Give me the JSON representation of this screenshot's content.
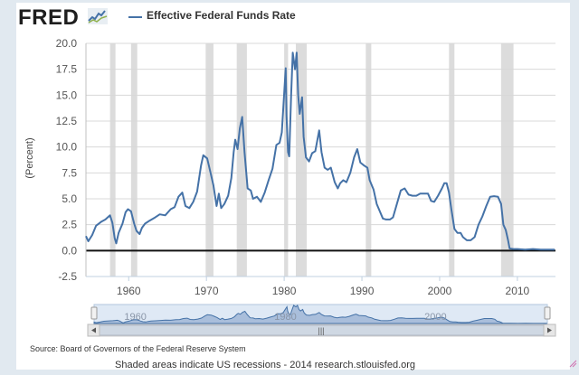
{
  "brand": {
    "logo_text": "FRED"
  },
  "chart_data": {
    "type": "line",
    "title": "",
    "ylabel": "(Percent)",
    "xlabel": "",
    "xlim": [
      1954.5,
      2014.9
    ],
    "ylim": [
      -2.5,
      20
    ],
    "y_ticks": [
      "20.0",
      "17.5",
      "15.0",
      "12.5",
      "10.0",
      "7.5",
      "5.0",
      "2.5",
      "0.0",
      "-2.5"
    ],
    "x_ticks": [
      "1960",
      "1970",
      "1980",
      "1990",
      "2000",
      "2010"
    ],
    "grid": "horizontal",
    "legend_position": "top",
    "line_color": "#4572a7",
    "recession_color": "#dcdcdc",
    "series": [
      {
        "name": "Effective Federal Funds Rate",
        "x": [
          1954.5,
          1954.8,
          1955.3,
          1955.8,
          1956.5,
          1957.0,
          1957.6,
          1957.9,
          1958.2,
          1958.4,
          1958.7,
          1959.2,
          1959.6,
          1959.9,
          1960.3,
          1960.7,
          1961.0,
          1961.4,
          1961.7,
          1962.1,
          1962.7,
          1963.4,
          1964.0,
          1964.7,
          1965.4,
          1965.9,
          1966.4,
          1966.9,
          1967.3,
          1967.8,
          1968.3,
          1968.8,
          1969.3,
          1969.6,
          1970.1,
          1970.5,
          1970.9,
          1971.3,
          1971.6,
          1971.9,
          1972.3,
          1972.8,
          1973.2,
          1973.5,
          1973.7,
          1974.0,
          1974.3,
          1974.6,
          1974.9,
          1975.3,
          1975.7,
          1976.0,
          1976.5,
          1977.0,
          1977.5,
          1978.0,
          1978.5,
          1979.0,
          1979.4,
          1979.7,
          1979.9,
          1980.2,
          1980.3,
          1980.5,
          1980.65,
          1980.9,
          1981.1,
          1981.4,
          1981.6,
          1981.8,
          1982.0,
          1982.3,
          1982.5,
          1982.8,
          1983.2,
          1983.6,
          1984.0,
          1984.5,
          1984.8,
          1985.2,
          1985.6,
          1986.0,
          1986.5,
          1986.9,
          1987.2,
          1987.6,
          1988.0,
          1988.5,
          1989.0,
          1989.4,
          1989.8,
          1990.3,
          1990.7,
          1991.0,
          1991.5,
          1991.9,
          1992.3,
          1992.7,
          1993.1,
          1993.6,
          1994.0,
          1994.5,
          1995.0,
          1995.5,
          1996.0,
          1996.5,
          1997.0,
          1997.5,
          1998.0,
          1998.5,
          1998.9,
          1999.3,
          1999.8,
          2000.3,
          2000.6,
          2000.9,
          2001.2,
          2001.5,
          2001.9,
          2002.3,
          2002.7,
          2003.0,
          2003.5,
          2004.0,
          2004.5,
          2005.0,
          2005.5,
          2006.0,
          2006.5,
          2007.0,
          2007.5,
          2007.9,
          2008.2,
          2008.5,
          2008.8,
          2009.0,
          2009.5,
          2010.0,
          2011.0,
          2012.0,
          2013.0,
          2014.0,
          2014.8
        ],
        "values": [
          1.4,
          0.9,
          1.5,
          2.4,
          2.8,
          3.0,
          3.4,
          2.7,
          1.2,
          0.7,
          1.7,
          2.6,
          3.7,
          4.0,
          3.8,
          2.6,
          1.9,
          1.6,
          2.2,
          2.6,
          2.9,
          3.2,
          3.5,
          3.4,
          4.0,
          4.2,
          5.2,
          5.6,
          4.3,
          4.1,
          4.7,
          5.7,
          8.2,
          9.2,
          8.9,
          7.6,
          6.3,
          4.3,
          5.5,
          4.1,
          4.5,
          5.3,
          7.0,
          9.5,
          10.7,
          9.8,
          11.8,
          12.9,
          9.5,
          6.0,
          5.8,
          5.0,
          5.2,
          4.7,
          5.6,
          6.8,
          7.9,
          10.2,
          10.4,
          11.4,
          14.0,
          17.6,
          13.0,
          9.5,
          9.1,
          15.0,
          19.1,
          17.5,
          19.1,
          15.0,
          13.2,
          14.8,
          11.0,
          9.0,
          8.6,
          9.4,
          9.6,
          11.6,
          9.5,
          8.0,
          7.8,
          8.0,
          6.6,
          6.0,
          6.5,
          6.8,
          6.6,
          7.5,
          9.0,
          9.8,
          8.5,
          8.2,
          8.0,
          6.8,
          5.9,
          4.5,
          3.8,
          3.1,
          3.0,
          3.0,
          3.2,
          4.5,
          5.8,
          6.0,
          5.4,
          5.3,
          5.3,
          5.5,
          5.5,
          5.5,
          4.8,
          4.7,
          5.3,
          6.0,
          6.5,
          6.5,
          5.6,
          4.0,
          2.1,
          1.7,
          1.7,
          1.3,
          1.0,
          1.0,
          1.3,
          2.5,
          3.3,
          4.3,
          5.2,
          5.25,
          5.2,
          4.5,
          2.5,
          2.0,
          1.0,
          0.2,
          0.15,
          0.15,
          0.1,
          0.15,
          0.1,
          0.1,
          0.1
        ]
      }
    ],
    "recessions": [
      [
        1957.6,
        1958.3
      ],
      [
        1960.3,
        1961.1
      ],
      [
        1969.9,
        1970.9
      ],
      [
        1973.9,
        1975.2
      ],
      [
        1980.0,
        1980.5
      ],
      [
        1981.5,
        1982.9
      ],
      [
        1990.5,
        1991.2
      ],
      [
        2001.2,
        2001.9
      ],
      [
        2007.9,
        2009.5
      ]
    ],
    "navigator_ticks": [
      "1960",
      "1980",
      "2000"
    ],
    "scrollbar_grip": "|||"
  },
  "footer": {
    "source": "Source: Board of Governors of the Federal Reserve System",
    "note": "Shaded areas indicate US recessions - 2014 research.stlouisfed.org"
  },
  "icons": {
    "logo_mark": "line-chart-icon",
    "scroll_left": "arrow-left-icon",
    "scroll_right": "arrow-right-icon",
    "nav_handle": "drag-handle-icon",
    "resize": "resize-grip-icon"
  }
}
